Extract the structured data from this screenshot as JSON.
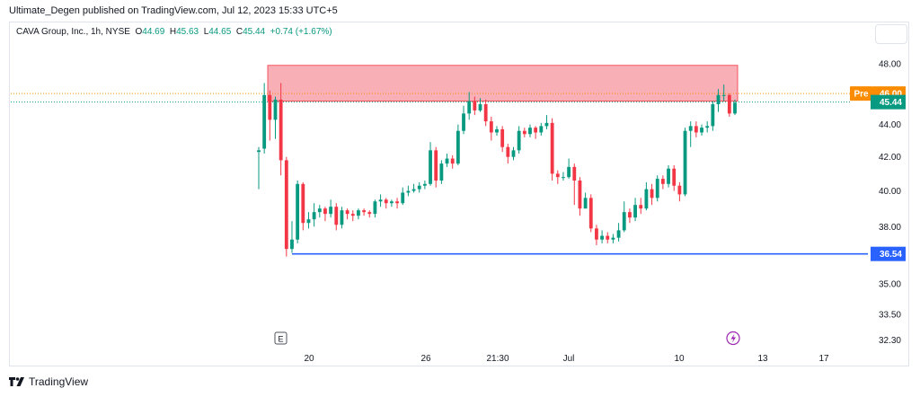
{
  "header": {
    "publish_line": "Ultimate_Degen published on TradingView.com, Jul 12, 2023 15:33 UTC+5",
    "symbol": "CAVA Group, Inc., 1h, NYSE",
    "o_label": "O",
    "o_value": "44.69",
    "h_label": "H",
    "h_value": "45.63",
    "l_label": "L",
    "l_value": "44.65",
    "c_label": "C",
    "c_value": "45.44",
    "change": "+0.74 (+1.67%)"
  },
  "footer": {
    "brand": "TradingView"
  },
  "colors": {
    "up": "#089981",
    "down": "#f23645",
    "zone_fill": "#f7a1a8",
    "zone_stroke": "#f23645",
    "support_line": "#2962ff",
    "pre_badge": "#fb8c00",
    "last_price_badge": "#089981",
    "support_badge": "#2962ff"
  },
  "chart_data": {
    "type": "candlestick",
    "y_axis": {
      "ticks": [
        48.0,
        44.0,
        42.0,
        40.0,
        38.0,
        35.0,
        33.5,
        32.3
      ],
      "tick_labels": [
        "48.00",
        "44.00",
        "42.00",
        "40.00",
        "38.00",
        "35.00",
        "33.50",
        "32.30"
      ],
      "scale": "log",
      "range": [
        31.9,
        49.2
      ]
    },
    "x_axis": {
      "tick_labels": [
        "20",
        "26",
        "21:30",
        "Jul",
        "10",
        "13",
        "17"
      ]
    },
    "price_badges": [
      {
        "label": "Pre",
        "value": "46.00",
        "price": 46.0
      },
      {
        "label": "",
        "value": "45.44",
        "price": 45.44
      },
      {
        "label": "",
        "value": "36.54",
        "price": 36.54
      }
    ],
    "resistance_zone": {
      "low": 45.5,
      "high": 47.9
    },
    "support_level": 36.54,
    "earnings_marker": "E",
    "candles": [
      [
        42.3,
        42.4,
        40.1,
        42.6
      ],
      [
        42.5,
        45.9,
        42.2,
        46.7
      ],
      [
        45.9,
        44.3,
        43.0,
        46.2
      ],
      [
        44.3,
        45.6,
        43.1,
        45.8
      ],
      [
        45.6,
        41.8,
        40.9,
        46.7
      ],
      [
        41.8,
        36.8,
        36.4,
        42.0
      ],
      [
        36.8,
        37.3,
        36.6,
        38.3
      ],
      [
        37.3,
        40.4,
        37.1,
        40.6
      ],
      [
        40.4,
        38.2,
        37.8,
        40.5
      ],
      [
        38.2,
        38.4,
        37.9,
        38.8
      ],
      [
        38.4,
        38.8,
        38.0,
        39.3
      ],
      [
        38.8,
        39.0,
        38.5,
        39.2
      ],
      [
        39.0,
        38.7,
        38.3,
        39.1
      ],
      [
        38.7,
        39.1,
        38.5,
        39.5
      ],
      [
        39.1,
        38.1,
        37.8,
        39.3
      ],
      [
        38.1,
        38.9,
        37.9,
        39.1
      ],
      [
        38.9,
        38.7,
        38.4,
        39.0
      ],
      [
        38.7,
        38.6,
        38.3,
        38.9
      ],
      [
        38.6,
        38.9,
        38.4,
        39.0
      ],
      [
        38.9,
        38.8,
        38.6,
        39.0
      ],
      [
        38.8,
        38.7,
        38.5,
        38.9
      ],
      [
        38.7,
        39.4,
        38.5,
        39.5
      ],
      [
        39.4,
        39.5,
        39.1,
        39.8
      ],
      [
        39.5,
        39.3,
        39.0,
        39.6
      ],
      [
        39.3,
        39.4,
        39.1,
        39.5
      ],
      [
        39.4,
        39.3,
        39.0,
        39.6
      ],
      [
        39.3,
        39.9,
        39.2,
        40.2
      ],
      [
        39.9,
        40.0,
        39.7,
        40.3
      ],
      [
        40.0,
        40.1,
        39.9,
        40.4
      ],
      [
        40.1,
        40.3,
        39.9,
        40.5
      ],
      [
        40.3,
        40.4,
        40.1,
        40.6
      ],
      [
        40.4,
        42.4,
        40.3,
        42.9
      ],
      [
        42.4,
        40.6,
        40.2,
        42.6
      ],
      [
        40.6,
        41.6,
        40.4,
        41.8
      ],
      [
        41.6,
        41.9,
        41.4,
        42.2
      ],
      [
        41.9,
        41.6,
        41.3,
        42.1
      ],
      [
        41.6,
        43.6,
        41.5,
        44.0
      ],
      [
        43.6,
        44.7,
        43.4,
        45.2
      ],
      [
        44.7,
        45.5,
        44.3,
        46.1
      ],
      [
        45.5,
        44.9,
        44.6,
        45.8
      ],
      [
        44.9,
        45.3,
        44.8,
        45.7
      ],
      [
        45.3,
        44.2,
        43.9,
        45.6
      ],
      [
        44.2,
        43.5,
        43.0,
        44.5
      ],
      [
        43.5,
        43.7,
        43.3,
        43.9
      ],
      [
        43.7,
        42.6,
        42.3,
        43.9
      ],
      [
        42.6,
        42.0,
        41.6,
        42.8
      ],
      [
        42.0,
        42.4,
        41.8,
        42.6
      ],
      [
        42.4,
        43.6,
        42.2,
        43.9
      ],
      [
        43.6,
        43.4,
        43.2,
        43.8
      ],
      [
        43.4,
        43.8,
        43.2,
        44.0
      ],
      [
        43.8,
        43.5,
        43.1,
        43.9
      ],
      [
        43.5,
        43.9,
        43.3,
        44.1
      ],
      [
        43.9,
        44.1,
        43.7,
        44.6
      ],
      [
        44.1,
        41.0,
        40.6,
        44.4
      ],
      [
        41.0,
        40.8,
        40.4,
        41.2
      ],
      [
        40.8,
        40.8,
        40.6,
        41.1
      ],
      [
        40.8,
        41.4,
        40.7,
        41.9
      ],
      [
        41.4,
        40.6,
        39.2,
        41.6
      ],
      [
        40.6,
        39.0,
        38.6,
        40.8
      ],
      [
        39.0,
        39.6,
        39.0,
        39.9
      ],
      [
        39.6,
        37.9,
        37.7,
        39.8
      ],
      [
        37.9,
        37.3,
        37.0,
        38.1
      ],
      [
        37.3,
        37.5,
        37.1,
        37.8
      ],
      [
        37.5,
        37.3,
        37.1,
        37.7
      ],
      [
        37.3,
        37.4,
        37.1,
        37.6
      ],
      [
        37.4,
        37.8,
        37.2,
        38.2
      ],
      [
        37.8,
        38.8,
        37.7,
        39.4
      ],
      [
        38.8,
        38.5,
        38.2,
        39.0
      ],
      [
        38.5,
        39.2,
        38.3,
        39.6
      ],
      [
        39.2,
        39.0,
        38.7,
        39.6
      ],
      [
        39.0,
        40.1,
        38.9,
        40.5
      ],
      [
        40.1,
        39.6,
        39.2,
        40.4
      ],
      [
        39.6,
        40.7,
        39.4,
        40.9
      ],
      [
        40.7,
        40.4,
        40.1,
        40.9
      ],
      [
        40.4,
        41.3,
        40.2,
        41.5
      ],
      [
        41.3,
        40.3,
        40.0,
        41.5
      ],
      [
        40.3,
        39.8,
        39.4,
        40.5
      ],
      [
        39.8,
        43.6,
        39.7,
        43.8
      ],
      [
        43.6,
        43.9,
        42.6,
        44.2
      ],
      [
        43.9,
        43.5,
        43.2,
        44.2
      ],
      [
        43.5,
        43.8,
        43.3,
        44.0
      ],
      [
        43.8,
        43.9,
        43.5,
        44.2
      ],
      [
        43.9,
        45.3,
        43.6,
        45.5
      ],
      [
        45.3,
        45.9,
        44.8,
        46.3
      ],
      [
        45.9,
        45.9,
        45.5,
        46.6
      ],
      [
        45.9,
        44.7,
        44.5,
        46.0
      ],
      [
        44.7,
        45.4,
        44.6,
        45.6
      ]
    ]
  }
}
